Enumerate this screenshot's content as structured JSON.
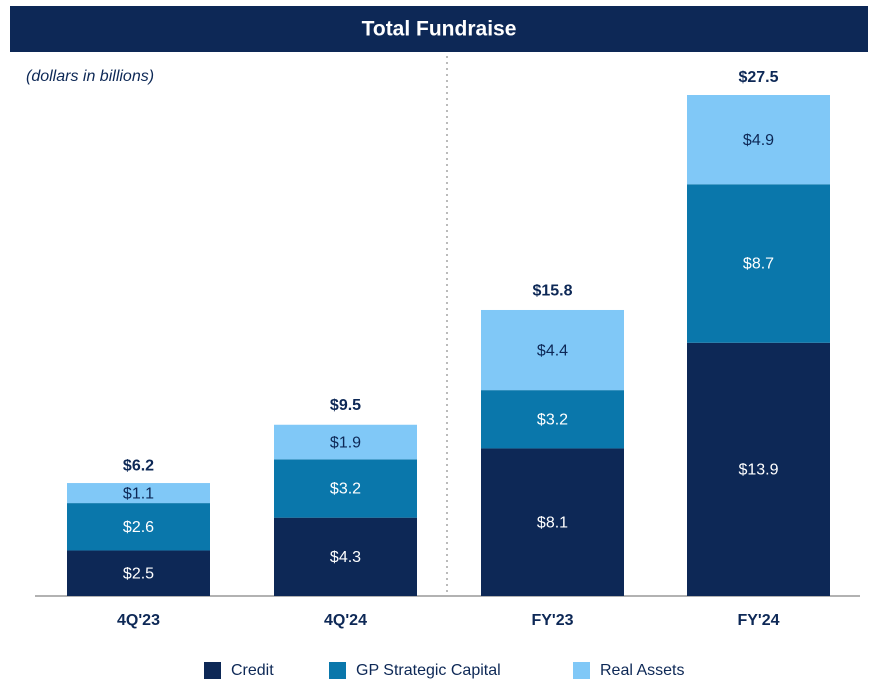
{
  "chart_data": {
    "type": "stacked_bar",
    "title": "Total Fundraise",
    "subtitle": "(dollars in billions)",
    "categories": [
      "4Q'23",
      "4Q'24",
      "FY'23",
      "FY'24"
    ],
    "series": [
      {
        "name": "Credit",
        "color": "#0d2856",
        "values": [
          2.5,
          4.3,
          8.1,
          13.9
        ],
        "value_labels": [
          "$2.5",
          "$4.3",
          "$8.1",
          "$13.9"
        ]
      },
      {
        "name": "GP Strategic Capital",
        "color": "#0a77ab",
        "values": [
          2.6,
          3.2,
          3.2,
          8.7
        ],
        "value_labels": [
          "$2.6",
          "$3.2",
          "$3.2",
          "$8.7"
        ]
      },
      {
        "name": "Real Assets",
        "color": "#80c8f7",
        "values": [
          1.1,
          1.9,
          4.4,
          4.9
        ],
        "value_labels": [
          "$1.1",
          "$1.9",
          "$4.4",
          "$4.9"
        ]
      }
    ],
    "totals": [
      6.2,
      9.5,
      15.8,
      27.5
    ],
    "total_labels": [
      "$6.2",
      "$9.5",
      "$15.8",
      "$27.5"
    ]
  }
}
